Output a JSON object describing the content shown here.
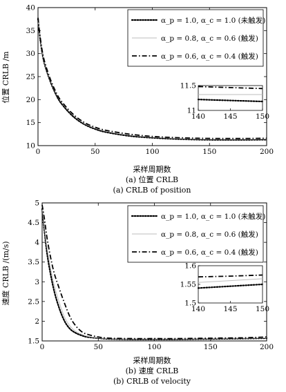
{
  "chart_data": [
    {
      "type": "line",
      "caption_cn": "(a) 位置 CRLB",
      "caption_en": "(a) CRLB of position",
      "xlabel": "采样周期数",
      "ylabel": "位置 CRLB /m",
      "xlim": [
        0,
        200
      ],
      "ylim": [
        10,
        40
      ],
      "xticks": [
        "0",
        "50",
        "100",
        "150",
        "200"
      ],
      "yticks": [
        "10",
        "15",
        "20",
        "25",
        "30",
        "35",
        "40"
      ],
      "legend_position": "top-right",
      "x": [
        0,
        2,
        5,
        10,
        15,
        20,
        30,
        40,
        50,
        60,
        80,
        100,
        120,
        140,
        160,
        180,
        200
      ],
      "series": [
        {
          "name": "α_p = 1.0, α_c = 1.0 (未触发)",
          "style": "dotted",
          "values": [
            37.5,
            33.0,
            28.5,
            24.5,
            21.5,
            19.3,
            16.5,
            14.7,
            13.6,
            12.9,
            12.1,
            11.7,
            11.45,
            11.3,
            11.25,
            11.25,
            11.3
          ]
        },
        {
          "name": "α_p = 0.8, α_c = 0.6 (触发)",
          "style": "solid-light",
          "values": [
            37.6,
            33.2,
            28.8,
            24.8,
            21.8,
            19.6,
            16.8,
            14.9,
            13.8,
            13.1,
            12.3,
            11.85,
            11.6,
            11.45,
            11.4,
            11.4,
            11.45
          ]
        },
        {
          "name": "α_p = 0.6, α_c = 0.4 (触发)",
          "style": "dashdot",
          "values": [
            37.8,
            33.4,
            29.0,
            25.0,
            22.0,
            19.8,
            17.0,
            15.1,
            14.0,
            13.3,
            12.5,
            12.0,
            11.75,
            11.6,
            11.55,
            11.55,
            11.6
          ]
        }
      ],
      "inset": {
        "xlim": [
          140,
          150
        ],
        "ylim": [
          11,
          11.5
        ],
        "xticks": [
          "140",
          "145",
          "150"
        ],
        "yticks": [
          "11",
          "11.5"
        ],
        "x": [
          140,
          145,
          150
        ],
        "series_values": [
          [
            11.22,
            11.2,
            11.18
          ],
          [
            11.32,
            11.32,
            11.32
          ],
          [
            11.48,
            11.46,
            11.44
          ]
        ]
      }
    },
    {
      "type": "line",
      "caption_cn": "(b) 速度 CRLB",
      "caption_en": "(b) CRLB of velocity",
      "xlabel": "采样周期数",
      "ylabel": "速度 CRLB /(m/s)",
      "xlim": [
        0,
        200
      ],
      "ylim": [
        1.5,
        5
      ],
      "xticks": [
        "0",
        "50",
        "100",
        "150",
        "200"
      ],
      "yticks": [
        "1.5",
        "2",
        "2.5",
        "3",
        "3.5",
        "4",
        "4.5",
        "5"
      ],
      "legend_position": "top-right",
      "x": [
        0,
        2,
        5,
        10,
        15,
        20,
        25,
        30,
        35,
        40,
        50,
        60,
        80,
        100,
        120,
        150,
        180,
        200
      ],
      "series": [
        {
          "name": "α_p = 1.0, α_c = 1.0 (未触发)",
          "style": "dotted",
          "values": [
            4.85,
            4.3,
            3.6,
            2.85,
            2.35,
            2.0,
            1.8,
            1.7,
            1.64,
            1.6,
            1.57,
            1.55,
            1.54,
            1.54,
            1.54,
            1.55,
            1.56,
            1.57
          ]
        },
        {
          "name": "α_p = 0.8, α_c = 0.6 (触发)",
          "style": "solid-light",
          "values": [
            4.9,
            4.4,
            3.75,
            3.0,
            2.5,
            2.1,
            1.87,
            1.74,
            1.67,
            1.62,
            1.58,
            1.56,
            1.55,
            1.55,
            1.55,
            1.56,
            1.57,
            1.58
          ]
        },
        {
          "name": "α_p = 0.6, α_c = 0.4 (触发)",
          "style": "dashdot",
          "values": [
            4.95,
            4.6,
            4.0,
            3.3,
            2.85,
            2.45,
            2.1,
            1.88,
            1.74,
            1.67,
            1.6,
            1.57,
            1.56,
            1.56,
            1.56,
            1.57,
            1.58,
            1.6
          ]
        }
      ],
      "inset": {
        "xlim": [
          140,
          150
        ],
        "ylim": [
          1.5,
          1.6
        ],
        "xticks": [
          "140",
          "145",
          "150"
        ],
        "yticks": [
          "1.5",
          "1.55",
          "1.6"
        ],
        "x": [
          140,
          145,
          150
        ],
        "series_values": [
          [
            1.54,
            1.545,
            1.55
          ],
          [
            1.555,
            1.56,
            1.565
          ],
          [
            1.57,
            1.572,
            1.575
          ]
        ]
      }
    }
  ]
}
